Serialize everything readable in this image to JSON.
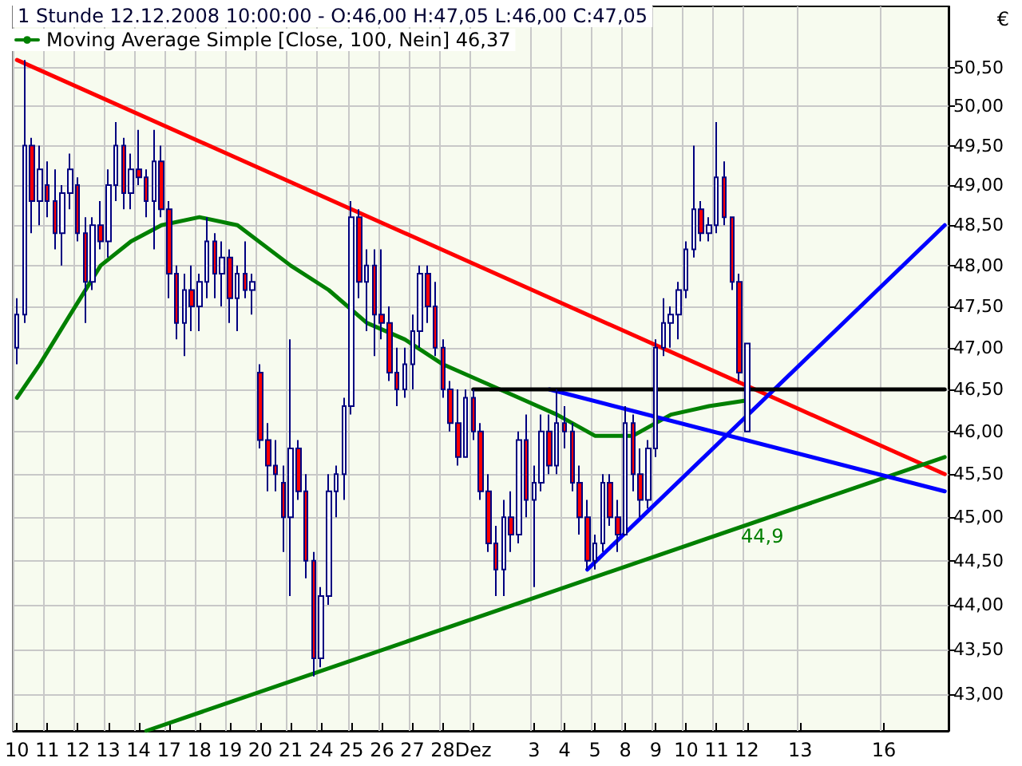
{
  "chart_data": {
    "type": "candlestick",
    "title": "1 Stunde 12.12.2008 10:00:00 - O:46,00 H:47,05 L:46,00 C:47,05",
    "ylabel": "€",
    "log": true,
    "grid": true,
    "legend": "top left",
    "ylim": [
      42.6,
      51.3
    ],
    "categories": [
      "10",
      null,
      null,
      null,
      "11",
      null,
      null,
      null,
      "12",
      null,
      null,
      null,
      "13",
      null,
      null,
      null,
      "14",
      null,
      null,
      null,
      "17",
      null,
      null,
      null,
      "18",
      null,
      null,
      null,
      "19",
      null,
      null,
      null,
      "20",
      null,
      null,
      null,
      "21",
      null,
      null,
      null,
      "24",
      null,
      null,
      null,
      "25",
      null,
      null,
      null,
      "26",
      null,
      null,
      null,
      "27",
      null,
      null,
      null,
      "28",
      null,
      null,
      null,
      "Dez",
      null,
      null,
      null,
      null,
      null,
      null,
      null,
      "3",
      null,
      null,
      null,
      "4",
      null,
      null,
      null,
      "5",
      null,
      null,
      null,
      "8",
      null,
      null,
      null,
      "9",
      null,
      null,
      null,
      "10",
      null,
      null,
      null,
      "11",
      null,
      null,
      null,
      "12",
      null,
      null,
      null,
      null,
      null,
      null,
      "13",
      null,
      null,
      null,
      null,
      null,
      null,
      null,
      null,
      null,
      null,
      "16",
      null,
      null,
      null,
      null,
      null,
      null,
      null,
      null
    ],
    "yticks": [
      {
        "value": 43,
        "label": "43,00"
      },
      {
        "value": 43.5,
        "label": "43,50"
      },
      {
        "value": 44,
        "label": "44,00"
      },
      {
        "value": 44.5,
        "label": "44,50"
      },
      {
        "value": 45,
        "label": "45,00"
      },
      {
        "value": 45.5,
        "label": "45,50"
      },
      {
        "value": 46,
        "label": "46,00"
      },
      {
        "value": 46.5,
        "label": "46,50"
      },
      {
        "value": 47,
        "label": "47,00"
      },
      {
        "value": 47.5,
        "label": "47,50"
      },
      {
        "value": 48,
        "label": "48,00"
      },
      {
        "value": 48.5,
        "label": "48,50"
      },
      {
        "value": 49,
        "label": "49,00"
      },
      {
        "value": 49.5,
        "label": "49,50"
      },
      {
        "value": 50,
        "label": "50,00"
      },
      {
        "value": 50.5,
        "label": "50,50"
      }
    ],
    "annotations": [
      "44,9"
    ],
    "series": [
      {
        "type": "line",
        "name": "Moving Average Simple [Close, 100, Nein] 46,37",
        "color": "#008000",
        "values": [
          46.4,
          null,
          null,
          46.8,
          null,
          null,
          null,
          47.4,
          null,
          null,
          null,
          48.0,
          null,
          null,
          null,
          48.3,
          null,
          null,
          null,
          48.5,
          null,
          null,
          null,
          null,
          48.6,
          null,
          null,
          null,
          null,
          48.5,
          null,
          null,
          null,
          null,
          null,
          null,
          48.0,
          null,
          null,
          null,
          null,
          47.7,
          null,
          null,
          null,
          null,
          47.3,
          null,
          null,
          null,
          null,
          47.1,
          null,
          null,
          null,
          null,
          46.8,
          null,
          null,
          null,
          null,
          46.6,
          null,
          null,
          null,
          null,
          46.4,
          null,
          null,
          null,
          null,
          46.2,
          null,
          null,
          null,
          null,
          45.95,
          null,
          null,
          null,
          null,
          45.95,
          null,
          null,
          null,
          null,
          46.2,
          null,
          null,
          null,
          null,
          46.3,
          null,
          null,
          null,
          null,
          46.37,
          null,
          null,
          null,
          null,
          null,
          null,
          null,
          null,
          null,
          null,
          null,
          null,
          null,
          null,
          null,
          null,
          null,
          null,
          null,
          null,
          null,
          null,
          null,
          null,
          null,
          null
        ]
      },
      {
        "type": "line",
        "color": "#ff0000",
        "values": [
          50.6,
          null,
          null,
          null,
          null,
          null,
          null,
          null,
          null,
          null,
          null,
          null,
          null,
          null,
          null,
          null,
          null,
          null,
          null,
          null,
          null,
          null,
          null,
          null,
          null,
          null,
          null,
          null,
          null,
          null,
          null,
          null,
          null,
          null,
          null,
          null,
          null,
          null,
          null,
          null,
          null,
          null,
          null,
          null,
          null,
          null,
          null,
          null,
          null,
          null,
          null,
          null,
          null,
          null,
          null,
          null,
          null,
          null,
          null,
          null,
          null,
          null,
          null,
          null,
          null,
          null,
          null,
          null,
          null,
          null,
          null,
          null,
          null,
          null,
          null,
          null,
          null,
          null,
          null,
          null,
          null,
          null,
          null,
          null,
          null,
          null,
          null,
          null,
          null,
          null,
          null,
          null,
          null,
          null,
          null,
          null,
          null,
          null,
          null,
          null,
          null,
          null,
          null,
          null,
          null,
          null,
          null,
          null,
          null,
          null,
          null,
          null,
          null,
          null,
          null,
          null,
          null,
          null,
          null,
          null,
          null,
          null,
          45.5
        ]
      },
      {
        "type": "line",
        "color": "#008000",
        "values": [
          null,
          null,
          null,
          null,
          null,
          null,
          null,
          null,
          null,
          null,
          null,
          null,
          null,
          null,
          null,
          null,
          null,
          42.6,
          null,
          null,
          null,
          null,
          null,
          null,
          null,
          null,
          null,
          null,
          null,
          null,
          null,
          null,
          null,
          null,
          null,
          null,
          null,
          null,
          null,
          null,
          null,
          null,
          null,
          null,
          null,
          null,
          null,
          null,
          null,
          null,
          null,
          null,
          null,
          null,
          null,
          null,
          null,
          null,
          null,
          null,
          null,
          null,
          null,
          null,
          null,
          null,
          null,
          null,
          null,
          null,
          null,
          null,
          null,
          null,
          null,
          null,
          null,
          null,
          null,
          null,
          null,
          null,
          null,
          null,
          null,
          null,
          null,
          null,
          null,
          null,
          null,
          null,
          null,
          null,
          null,
          null,
          null,
          null,
          null,
          null,
          null,
          null,
          null,
          null,
          null,
          null,
          null,
          null,
          null,
          null,
          null,
          null,
          null,
          null,
          null,
          null,
          null,
          null,
          null,
          null,
          null,
          null,
          45.7
        ]
      },
      {
        "type": "line",
        "color": "#0000ff",
        "values": [
          null,
          null,
          null,
          null,
          null,
          null,
          null,
          null,
          null,
          null,
          null,
          null,
          null,
          null,
          null,
          null,
          null,
          null,
          null,
          null,
          null,
          null,
          null,
          null,
          null,
          null,
          null,
          null,
          null,
          null,
          null,
          null,
          null,
          null,
          null,
          null,
          null,
          null,
          null,
          null,
          null,
          null,
          null,
          null,
          null,
          null,
          null,
          null,
          null,
          null,
          null,
          null,
          null,
          null,
          null,
          null,
          null,
          null,
          null,
          null,
          null,
          null,
          null,
          null,
          null,
          null,
          null,
          null,
          null,
          null,
          null,
          null,
          null,
          null,
          null,
          44.4,
          null,
          null,
          null,
          null,
          null,
          null,
          null,
          null,
          null,
          null,
          null,
          null,
          null,
          null,
          null,
          null,
          null,
          null,
          null,
          null,
          null,
          null,
          null,
          null,
          null,
          null,
          null,
          null,
          null,
          null,
          null,
          null,
          null,
          null,
          null,
          null,
          null,
          null,
          null,
          null,
          null,
          null,
          null,
          null,
          null,
          null,
          48.5
        ]
      },
      {
        "type": "line",
        "color": "#0000ff",
        "values": [
          null,
          null,
          null,
          null,
          null,
          null,
          null,
          null,
          null,
          null,
          null,
          null,
          null,
          null,
          null,
          null,
          null,
          null,
          null,
          null,
          null,
          null,
          null,
          null,
          null,
          null,
          null,
          null,
          null,
          null,
          null,
          null,
          null,
          null,
          null,
          null,
          null,
          null,
          null,
          null,
          null,
          null,
          null,
          null,
          null,
          null,
          null,
          null,
          null,
          null,
          null,
          null,
          null,
          null,
          null,
          null,
          null,
          null,
          null,
          null,
          null,
          null,
          null,
          null,
          null,
          null,
          null,
          null,
          null,
          null,
          46.5,
          null,
          null,
          null,
          null,
          null,
          null,
          null,
          null,
          null,
          null,
          null,
          null,
          null,
          null,
          null,
          null,
          null,
          null,
          null,
          null,
          null,
          null,
          null,
          null,
          null,
          null,
          null,
          null,
          null,
          null,
          null,
          null,
          null,
          null,
          null,
          null,
          null,
          null,
          null,
          null,
          null,
          null,
          null,
          null,
          null,
          null,
          null,
          null,
          null,
          null,
          null,
          45.3
        ]
      },
      {
        "type": "line",
        "color": "#000000",
        "values": [
          null,
          null,
          null,
          null,
          null,
          null,
          null,
          null,
          null,
          null,
          null,
          null,
          null,
          null,
          null,
          null,
          null,
          null,
          null,
          null,
          null,
          null,
          null,
          null,
          null,
          null,
          null,
          null,
          null,
          null,
          null,
          null,
          null,
          null,
          null,
          null,
          null,
          null,
          null,
          null,
          null,
          null,
          null,
          null,
          null,
          null,
          null,
          null,
          null,
          null,
          null,
          null,
          null,
          null,
          null,
          null,
          null,
          null,
          null,
          null,
          46.5,
          null,
          null,
          null,
          null,
          null,
          null,
          null,
          null,
          null,
          null,
          null,
          null,
          null,
          null,
          null,
          null,
          null,
          null,
          null,
          null,
          null,
          null,
          null,
          null,
          null,
          null,
          null,
          null,
          null,
          null,
          null,
          null,
          null,
          null,
          null,
          null,
          null,
          null,
          null,
          null,
          null,
          null,
          null,
          null,
          null,
          null,
          null,
          null,
          null,
          null,
          null,
          null,
          null,
          null,
          null,
          null,
          null,
          null,
          null,
          null,
          null,
          46.5
        ]
      },
      {
        "colors": [
          "#ffffff",
          "#ffffff",
          "#ff0000",
          "#ffffff",
          "#ff0000",
          "#ff0000",
          "#ffffff",
          "#ffffff",
          "#ff0000",
          "#ff0000",
          "#ffffff",
          "#ff0000",
          "#ffffff",
          "#ffffff",
          "#ff0000",
          "#ffffff",
          "#ff0000",
          "#ff0000",
          "#ffffff",
          "#ff0000",
          "#ff0000",
          "#ff0000",
          "#ffffff",
          "#ff0000",
          "#ffffff",
          "#ffffff",
          "#ff0000",
          "#ffffff",
          "#ff0000",
          "#ffffff",
          "#ff0000",
          "#ffffff",
          "#ff0000",
          "#ff0000",
          "#ff0000",
          "#ff0000",
          "#ffffff",
          "#ff0000",
          "#ff0000",
          "#ff0000",
          "#ffffff",
          "#ffffff",
          "#ffffff",
          "#ffffff",
          "#ffffff",
          "#ff0000",
          "#ffffff",
          "#ff0000",
          "#ff0000",
          "#ff0000",
          "#ff0000",
          "#ffffff",
          "#ffffff",
          "#ffffff",
          "#ff0000",
          "#ff0000",
          "#ff0000",
          "#ff0000",
          "#ff0000",
          "#ffffff",
          "#ff0000",
          "#ff0000",
          "#ff0000",
          "#ff0000",
          "#ffffff",
          "#ff0000",
          "#ffffff",
          "#ff0000",
          "#ffffff",
          "#ffffff",
          "#ff0000",
          "#ffffff",
          "#ff0000",
          "#ff0000",
          "#ff0000",
          "#ff0000",
          "#ffffff",
          "#ffffff",
          "#ff0000",
          "#ff0000",
          "#ffffff",
          "#ff0000",
          "#ff0000",
          "#ffffff",
          "#ffffff",
          "#ffffff",
          "#ffffff",
          "#ffffff",
          "#ffffff",
          "#ffffff",
          "#ff0000",
          "#ffffff",
          "#ffffff",
          "#ff0000",
          "#ff0000",
          "#ff0000",
          "#ffffff",
          null,
          null,
          null,
          null,
          null,
          null,
          null,
          null,
          null,
          null,
          null,
          null,
          null,
          null,
          null,
          null,
          null,
          null,
          null,
          null,
          null,
          null,
          null,
          null,
          null,
          null
        ],
        "ohlc": [
          [
            47.0,
            47.6,
            46.8,
            47.4
          ],
          [
            47.4,
            50.6,
            47.3,
            49.5
          ],
          [
            49.5,
            49.6,
            48.4,
            48.8
          ],
          [
            48.8,
            49.5,
            48.5,
            49.2
          ],
          [
            49.0,
            49.3,
            48.6,
            48.8
          ],
          [
            48.8,
            49.2,
            48.2,
            48.4
          ],
          [
            48.4,
            49.0,
            48.0,
            48.9
          ],
          [
            48.9,
            49.4,
            48.7,
            49.2
          ],
          [
            49.0,
            49.1,
            48.3,
            48.4
          ],
          [
            48.4,
            48.6,
            47.3,
            47.8
          ],
          [
            47.8,
            48.6,
            47.7,
            48.5
          ],
          [
            48.5,
            48.8,
            48.2,
            48.3
          ],
          [
            48.3,
            49.2,
            48.1,
            49.0
          ],
          [
            49.0,
            49.8,
            48.8,
            49.5
          ],
          [
            49.5,
            49.6,
            48.7,
            48.9
          ],
          [
            48.9,
            49.4,
            48.7,
            49.2
          ],
          [
            49.2,
            49.7,
            49.0,
            49.1
          ],
          [
            49.1,
            49.2,
            48.6,
            48.8
          ],
          [
            48.8,
            49.7,
            48.2,
            49.3
          ],
          [
            49.3,
            49.5,
            48.6,
            48.7
          ],
          [
            48.7,
            48.8,
            47.6,
            47.9
          ],
          [
            47.9,
            48.0,
            47.1,
            47.3
          ],
          [
            47.3,
            47.9,
            46.9,
            47.7
          ],
          [
            47.7,
            48.0,
            47.2,
            47.5
          ],
          [
            47.5,
            47.9,
            47.2,
            47.8
          ],
          [
            47.8,
            48.6,
            47.6,
            48.3
          ],
          [
            48.3,
            48.4,
            47.6,
            47.9
          ],
          [
            47.9,
            48.3,
            47.5,
            48.1
          ],
          [
            48.1,
            48.2,
            47.3,
            47.6
          ],
          [
            47.6,
            48.0,
            47.2,
            47.9
          ],
          [
            47.9,
            48.3,
            47.6,
            47.7
          ],
          [
            47.7,
            47.9,
            47.4,
            47.8
          ],
          [
            46.7,
            46.8,
            45.8,
            45.9
          ],
          [
            45.9,
            46.1,
            45.3,
            45.6
          ],
          [
            45.6,
            45.9,
            45.3,
            45.5
          ],
          [
            45.4,
            45.6,
            44.6,
            45.0
          ],
          [
            45.0,
            47.1,
            44.1,
            45.8
          ],
          [
            45.8,
            45.9,
            45.2,
            45.3
          ],
          [
            45.3,
            45.5,
            44.3,
            44.5
          ],
          [
            44.5,
            44.6,
            43.2,
            43.4
          ],
          [
            43.4,
            44.2,
            43.3,
            44.1
          ],
          [
            44.1,
            45.5,
            44.0,
            45.3
          ],
          [
            45.3,
            45.6,
            45.0,
            45.5
          ],
          [
            45.5,
            46.4,
            45.2,
            46.3
          ],
          [
            46.3,
            48.8,
            46.2,
            48.6
          ],
          [
            48.6,
            48.7,
            47.6,
            47.8
          ],
          [
            47.8,
            48.2,
            47.2,
            48.0
          ],
          [
            48.0,
            48.2,
            46.9,
            47.4
          ],
          [
            47.4,
            48.2,
            47.1,
            47.3
          ],
          [
            47.3,
            47.5,
            46.6,
            46.7
          ],
          [
            46.7,
            47.0,
            46.3,
            46.5
          ],
          [
            46.5,
            47.0,
            46.4,
            46.8
          ],
          [
            46.8,
            47.4,
            46.5,
            47.2
          ],
          [
            47.2,
            48.0,
            47.0,
            47.9
          ],
          [
            47.9,
            48.0,
            47.3,
            47.5
          ],
          [
            47.5,
            47.8,
            46.9,
            47.0
          ],
          [
            47.0,
            47.1,
            46.4,
            46.5
          ],
          [
            46.5,
            46.6,
            46.0,
            46.1
          ],
          [
            46.1,
            46.5,
            45.6,
            45.7
          ],
          [
            45.7,
            46.5,
            45.7,
            46.4
          ],
          [
            46.4,
            46.5,
            45.9,
            46.0
          ],
          [
            46.0,
            46.1,
            45.2,
            45.3
          ],
          [
            45.3,
            45.5,
            44.6,
            44.7
          ],
          [
            44.7,
            44.9,
            44.1,
            44.4
          ],
          [
            44.4,
            45.2,
            44.1,
            45.0
          ],
          [
            45.0,
            45.3,
            44.6,
            44.8
          ],
          [
            44.8,
            46.0,
            44.7,
            45.9
          ],
          [
            45.9,
            46.2,
            45.0,
            45.2
          ],
          [
            45.2,
            45.6,
            44.2,
            45.4
          ],
          [
            45.4,
            46.2,
            45.3,
            46.0
          ],
          [
            46.0,
            46.2,
            45.5,
            45.6
          ],
          [
            45.6,
            46.5,
            45.5,
            46.1
          ],
          [
            46.1,
            46.3,
            45.8,
            46.0
          ],
          [
            46.0,
            46.1,
            45.3,
            45.4
          ],
          [
            45.4,
            45.6,
            44.8,
            45.0
          ],
          [
            45.0,
            45.2,
            44.4,
            44.5
          ],
          [
            44.5,
            44.8,
            44.4,
            44.7
          ],
          [
            44.7,
            45.5,
            44.6,
            45.4
          ],
          [
            45.4,
            45.5,
            44.9,
            45.0
          ],
          [
            45.0,
            45.2,
            44.6,
            44.8
          ],
          [
            44.8,
            46.3,
            44.8,
            46.1
          ],
          [
            46.1,
            46.2,
            45.3,
            45.5
          ],
          [
            45.5,
            45.8,
            45.0,
            45.2
          ],
          [
            45.2,
            45.9,
            45.1,
            45.8
          ],
          [
            45.8,
            47.1,
            45.7,
            47.0
          ],
          [
            47.0,
            47.6,
            46.9,
            47.3
          ],
          [
            47.3,
            47.5,
            47.0,
            47.4
          ],
          [
            47.4,
            47.8,
            47.1,
            47.7
          ],
          [
            47.7,
            48.3,
            47.6,
            48.2
          ],
          [
            48.2,
            49.5,
            48.1,
            48.7
          ],
          [
            48.7,
            48.8,
            48.3,
            48.4
          ],
          [
            48.4,
            48.6,
            48.3,
            48.5
          ],
          [
            48.5,
            49.8,
            48.4,
            49.1
          ],
          [
            49.1,
            49.3,
            48.5,
            48.6
          ],
          [
            48.6,
            48.6,
            47.7,
            47.8
          ],
          [
            47.8,
            47.9,
            46.6,
            46.7
          ],
          [
            46.0,
            47.05,
            46.0,
            47.05
          ],
          null,
          null,
          null,
          null,
          null,
          null,
          null,
          null,
          null,
          null,
          null,
          null,
          null,
          null,
          null,
          null,
          null,
          null,
          null,
          null,
          null,
          null,
          null,
          null,
          null,
          null
        ]
      }
    ]
  }
}
